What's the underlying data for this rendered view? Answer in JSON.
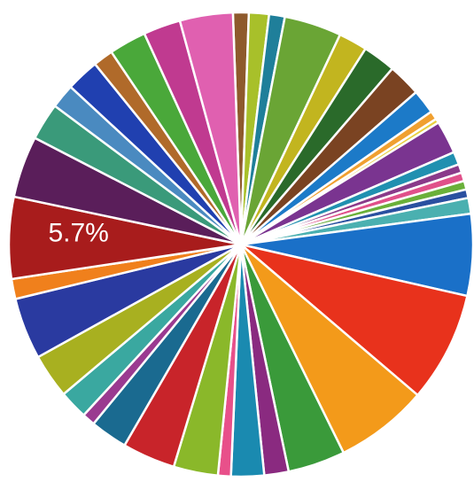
{
  "chart_data": {
    "type": "pie",
    "categories": [
      null,
      null,
      null,
      null,
      null,
      null,
      null,
      null,
      null,
      null,
      null,
      null,
      null,
      null,
      null,
      null,
      null,
      null,
      null,
      null,
      null,
      null,
      null,
      null,
      null,
      null,
      null,
      null,
      null,
      null,
      null,
      null,
      null,
      null,
      null,
      null,
      null,
      null,
      null,
      null,
      null
    ],
    "values": [
      1.1,
      1.4,
      1.1,
      4.0,
      2.0,
      2.3,
      2.3,
      1.7,
      0.6,
      0.3,
      2.3,
      0.9,
      0.6,
      0.6,
      0.6,
      0.6,
      1.1,
      5.7,
      7.7,
      6.5,
      4.0,
      1.7,
      2.3,
      0.9,
      3.1,
      3.7,
      2.6,
      0.9,
      2.0,
      3.1,
      4.3,
      1.4,
      5.7,
      4.3,
      2.6,
      1.7,
      2.3,
      1.4,
      2.6,
      2.6,
      3.7
    ],
    "value_labels": [
      null,
      null,
      null,
      null,
      null,
      null,
      null,
      null,
      null,
      null,
      null,
      null,
      null,
      null,
      null,
      null,
      null,
      null,
      null,
      null,
      null,
      null,
      null,
      null,
      null,
      null,
      null,
      null,
      null,
      null,
      null,
      null,
      "5.7%",
      null,
      null,
      null,
      null,
      null,
      null,
      null,
      null
    ],
    "colors": [
      "#8e5a2c",
      "#a8c02a",
      "#1f7f9a",
      "#6aa535",
      "#c2b51f",
      "#2a6a2a",
      "#7a4322",
      "#1c7ac8",
      "#f0a030",
      "#e8d040",
      "#7a3490",
      "#2090b0",
      "#8a3a8a",
      "#e0508a",
      "#6ab03a",
      "#2a50a0",
      "#4ab0b0",
      "#1a70c8",
      "#e8321c",
      "#f39a1a",
      "#3a9a3a",
      "#8a2a80",
      "#1a8ab0",
      "#e8508a",
      "#8ab82a",
      "#c8242a",
      "#1a6a90",
      "#9a3a90",
      "#3aa8a0",
      "#a8b020",
      "#2a3aa0",
      "#f0801c",
      "#a81c1c",
      "#5a1e5a",
      "#3a9a7a",
      "#4a8ac0",
      "#2040b0",
      "#b06a2a",
      "#4aa83a",
      "#c03a90",
      "#e060b0"
    ]
  }
}
